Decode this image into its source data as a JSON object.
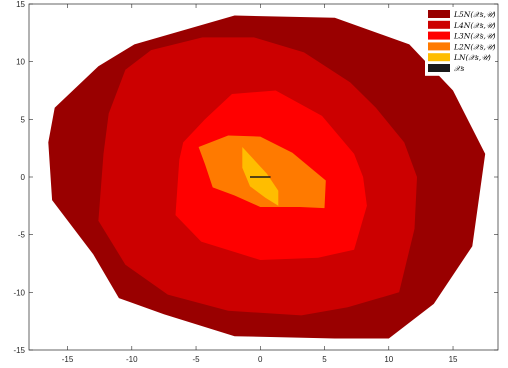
{
  "chart_data": {
    "type": "area",
    "xlim": [
      -18,
      18.5
    ],
    "ylim": [
      -15,
      15
    ],
    "xticks": [
      -15,
      -10,
      -5,
      0,
      5,
      10,
      15
    ],
    "yticks": [
      -15,
      -10,
      -5,
      0,
      5,
      10,
      15
    ],
    "xtick_labels": [
      "-15",
      "-10",
      "-5",
      "0",
      "5",
      "10",
      "15"
    ],
    "ytick_labels": [
      "-15",
      "-10",
      "-5",
      "0",
      "5",
      "10",
      "15"
    ],
    "grid": false,
    "legend_position": "top-right",
    "series": [
      {
        "name": "L_{5N}(X_s,U)",
        "label": "L5N(𝒳s,𝒰)",
        "color": "#990000",
        "polygon": [
          [
            -2,
            14
          ],
          [
            5.8,
            13.8
          ],
          [
            11.6,
            11.5
          ],
          [
            15,
            7.5
          ],
          [
            17.5,
            2
          ],
          [
            16.5,
            -6
          ],
          [
            13.5,
            -11
          ],
          [
            10,
            -14
          ],
          [
            5.8,
            -14
          ],
          [
            -2,
            -13.8
          ],
          [
            -7.5,
            -11.9
          ],
          [
            -11,
            -10.5
          ],
          [
            -13,
            -6.7
          ],
          [
            -16.2,
            -2
          ],
          [
            -16.5,
            3
          ],
          [
            -16,
            6
          ],
          [
            -12.6,
            9.6
          ],
          [
            -9.8,
            11.5
          ]
        ]
      },
      {
        "name": "L_{4N}(X_s,U)",
        "label": "L4N(𝒳s,𝒰)",
        "color": "#cc0000",
        "polygon": [
          [
            -8.5,
            11
          ],
          [
            -4.5,
            12.1
          ],
          [
            -0.5,
            12.1
          ],
          [
            3.4,
            10.8
          ],
          [
            7,
            8.2
          ],
          [
            9,
            6
          ],
          [
            11.2,
            3
          ],
          [
            12.2,
            0
          ],
          [
            12,
            -4.5
          ],
          [
            10.8,
            -10
          ],
          [
            6.8,
            -11.3
          ],
          [
            3.2,
            -12
          ],
          [
            -2.5,
            -11.6
          ],
          [
            -7.2,
            -10.2
          ],
          [
            -10.5,
            -7.6
          ],
          [
            -12.6,
            -3.8
          ],
          [
            -12.2,
            2
          ],
          [
            -11.8,
            5.5
          ],
          [
            -10.5,
            9.3
          ]
        ]
      },
      {
        "name": "L_{3N}(X_s,U)",
        "label": "L3N(𝒳s,𝒰)",
        "color": "#ff0000",
        "polygon": [
          [
            -2.2,
            7.2
          ],
          [
            1.2,
            7.5
          ],
          [
            4.8,
            5.3
          ],
          [
            7.3,
            2
          ],
          [
            8,
            0
          ],
          [
            8.3,
            -2.5
          ],
          [
            7.3,
            -6.3
          ],
          [
            4.5,
            -7
          ],
          [
            0,
            -7.2
          ],
          [
            -4.6,
            -5.6
          ],
          [
            -6.6,
            -3.3
          ],
          [
            -6.3,
            1.5
          ],
          [
            -6,
            3
          ],
          [
            -4.3,
            5
          ]
        ]
      },
      {
        "name": "L_{2N}(X_s,U)",
        "label": "L2N(𝒳s,𝒰)",
        "color": "#ff7a00",
        "polygon": [
          [
            -2.5,
            3.6
          ],
          [
            0,
            3.5
          ],
          [
            2.5,
            2.1
          ],
          [
            5.1,
            -0.3
          ],
          [
            5,
            -2.7
          ],
          [
            3.1,
            -2.6
          ],
          [
            0,
            -2.6
          ],
          [
            -2,
            -1.6
          ],
          [
            -3.7,
            -0.9
          ],
          [
            -4.3,
            1.1
          ],
          [
            -4.8,
            2.6
          ]
        ]
      },
      {
        "name": "L_{N}(X_s,U)",
        "label": "LN(𝒳s,𝒰)",
        "color": "#ffbd00",
        "polygon": [
          [
            -1.4,
            2.6
          ],
          [
            0.5,
            0.3
          ],
          [
            1.4,
            -1.2
          ],
          [
            1.4,
            -2.5
          ],
          [
            0.4,
            -1.8
          ],
          [
            -0.8,
            -0.8
          ],
          [
            -1.4,
            0.8
          ]
        ]
      },
      {
        "name": "X_s",
        "label": "𝒳s",
        "color": "#1a1a1a",
        "segment": [
          [
            -0.8,
            0
          ],
          [
            0.8,
            0
          ]
        ]
      }
    ]
  }
}
